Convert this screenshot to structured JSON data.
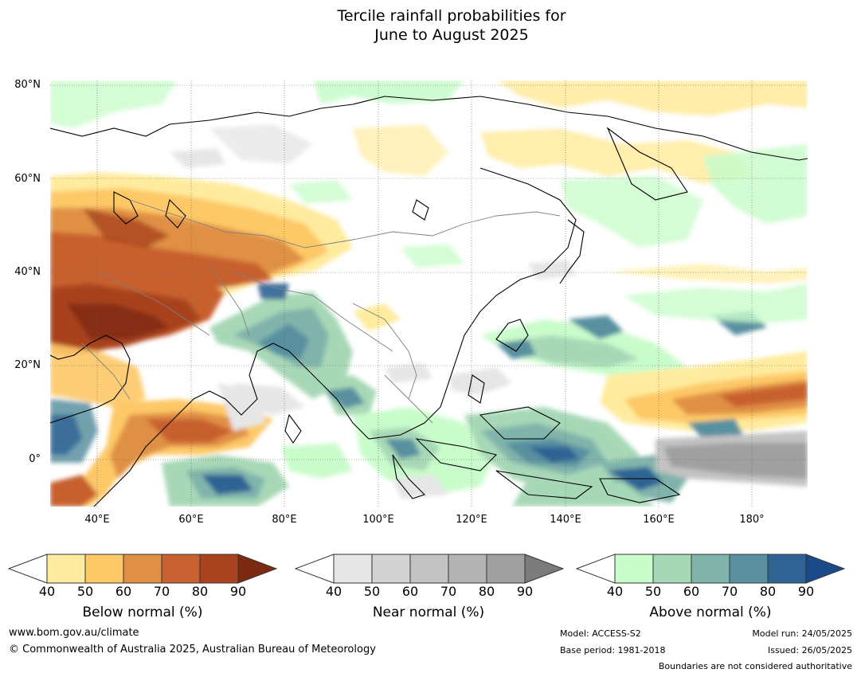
{
  "title": {
    "line1": "Tercile rainfall probabilities for",
    "line2": "June to August 2025"
  },
  "axes": {
    "lat_labels": [
      "80°N",
      "60°N",
      "40°N",
      "20°N",
      "0°"
    ],
    "lon_labels": [
      "40°E",
      "60°E",
      "80°E",
      "100°E",
      "120°E",
      "140°E",
      "160°E",
      "180°"
    ]
  },
  "map": {
    "extent": {
      "lon": [
        30,
        192
      ],
      "lat": [
        -10,
        81
      ]
    },
    "gridlines": true,
    "ocean_color": "#ffffff"
  },
  "colorbars": [
    {
      "title": "Below normal (%)",
      "ticks": [
        "40",
        "50",
        "60",
        "70",
        "80",
        "90"
      ],
      "colors": [
        "#ffffff",
        "#ffeb9e",
        "#fdc866",
        "#e09044",
        "#c8612f",
        "#a9431f",
        "#7e2a12"
      ]
    },
    {
      "title": "Near normal (%)",
      "ticks": [
        "40",
        "50",
        "60",
        "70",
        "80",
        "90"
      ],
      "colors": [
        "#ffffff",
        "#e6e6e6",
        "#d3d3d3",
        "#c3c3c3",
        "#b2b3b2",
        "#a0a0a0",
        "#7b7b7b"
      ]
    },
    {
      "title": "Above normal (%)",
      "ticks": [
        "40",
        "50",
        "60",
        "70",
        "80",
        "90"
      ],
      "colors": [
        "#ffffff",
        "#c9fccb",
        "#a7d8b6",
        "#80b4ab",
        "#5990a0",
        "#2f6394",
        "#1a4a88"
      ]
    }
  ],
  "footer": {
    "website": "www.bom.gov.au/climate",
    "copyright": "© Commonwealth of Australia 2025, Australian Bureau of Meteorology",
    "model": "Model: ACCESS-S2",
    "base_period": "Base period: 1981-2018",
    "model_run": "Model run: 24/05/2025",
    "issued": "Issued: 26/05/2025",
    "boundaries_note": "Boundaries are not considered authoritative"
  }
}
